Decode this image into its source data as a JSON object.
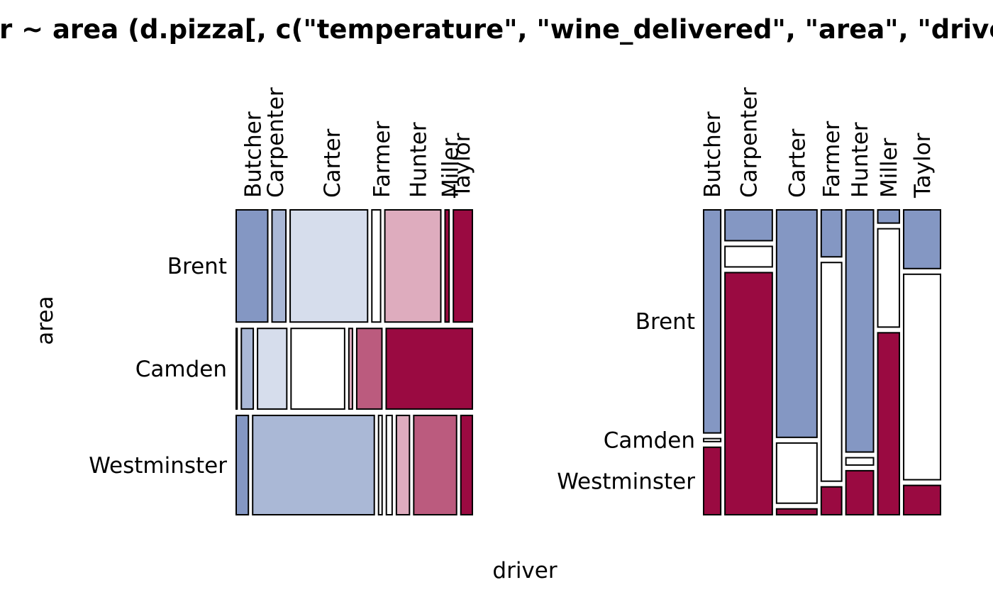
{
  "chart_data": {
    "type": "mosaic",
    "title": "driver ~ area (d.pizza[, c(\"temperature\", \"wine_delivered\", \"area\", \"driver\")])",
    "xlabel": "driver",
    "ylabel": "area",
    "colors": {
      "dark_blue": "#8497c3",
      "mid_blue": "#aab8d6",
      "light_blue": "#d6ddec",
      "white": "#ffffff",
      "light_pink": "#deacbe",
      "mid_pink": "#bb5b7e",
      "dark_red": "#9a0a41"
    },
    "panels": [
      {
        "panel": "left",
        "row_axis": "area",
        "col_axis": "driver",
        "rows": [
          {
            "label": "Brent",
            "share": 0.384,
            "cells": [
              {
                "driver": "Butcher",
                "share": 0.141,
                "color": "dark_blue"
              },
              {
                "driver": "Carpenter",
                "share": 0.062,
                "color": "mid_blue"
              },
              {
                "driver": "Carter",
                "share": 0.346,
                "color": "light_blue"
              },
              {
                "driver": "Farmer",
                "share": 0.039,
                "color": "white"
              },
              {
                "driver": "Hunter",
                "share": 0.25,
                "color": "light_pink"
              },
              {
                "driver": "Miller",
                "share": 0.018,
                "color": "dark_red"
              },
              {
                "driver": "Taylor",
                "share": 0.085,
                "color": "dark_red"
              }
            ]
          },
          {
            "label": "Camden",
            "share": 0.276,
            "cells": [
              {
                "driver": "Butcher",
                "share": 0.004,
                "color": "dark_blue"
              },
              {
                "driver": "Carpenter",
                "share": 0.053,
                "color": "mid_blue"
              },
              {
                "driver": "Carter",
                "share": 0.13,
                "color": "light_blue"
              },
              {
                "driver": "Farmer",
                "share": 0.238,
                "color": "white"
              },
              {
                "driver": "Hunter",
                "share": 0.016,
                "color": "light_pink"
              },
              {
                "driver": "Miller",
                "share": 0.112,
                "color": "mid_pink"
              },
              {
                "driver": "Taylor",
                "share": 0.383,
                "color": "dark_red"
              }
            ]
          },
          {
            "label": "Westminster",
            "share": 0.34,
            "cells": [
              {
                "driver": "Butcher",
                "share": 0.055,
                "color": "dark_blue"
              },
              {
                "driver": "Carpenter",
                "share": 0.548,
                "color": "mid_blue"
              },
              {
                "driver": "Carter",
                "share": 0.016,
                "color": "white"
              },
              {
                "driver": "Farmer",
                "share": 0.026,
                "color": "white"
              },
              {
                "driver": "Hunter",
                "share": 0.059,
                "color": "light_pink"
              },
              {
                "driver": "Miller",
                "share": 0.193,
                "color": "mid_pink"
              },
              {
                "driver": "Taylor",
                "share": 0.052,
                "color": "dark_red"
              }
            ]
          }
        ],
        "col_labels": [
          {
            "label": "Butcher",
            "at": 0.07
          },
          {
            "label": "Carpenter",
            "at": 0.165
          },
          {
            "label": "Carter",
            "at": 0.405
          },
          {
            "label": "Farmer",
            "at": 0.615
          },
          {
            "label": "Hunter",
            "at": 0.77
          },
          {
            "label": "Miller",
            "at": 0.905
          },
          {
            "label": "Taylor",
            "at": 0.955
          }
        ]
      },
      {
        "panel": "right",
        "row_axis": "area",
        "col_axis": "driver",
        "row_labels": [
          {
            "label": "Brent",
            "at": 0.365
          },
          {
            "label": "Camden",
            "at": 0.755
          },
          {
            "label": "Westminster",
            "at": 0.89
          }
        ],
        "columns": [
          {
            "label": "Butcher",
            "share": 0.072,
            "cells": [
              {
                "area": "Brent",
                "share": 0.76,
                "color": "dark_blue"
              },
              {
                "area": "Camden",
                "share": 0.01,
                "color": "white"
              },
              {
                "area": "Westminster",
                "share": 0.23,
                "color": "dark_red"
              }
            ]
          },
          {
            "label": "Carpenter",
            "share": 0.199,
            "cells": [
              {
                "area": "Brent",
                "share": 0.105,
                "color": "dark_blue"
              },
              {
                "area": "Camden",
                "share": 0.07,
                "color": "white"
              },
              {
                "area": "Westminster",
                "share": 0.825,
                "color": "dark_red"
              }
            ]
          },
          {
            "label": "Carter",
            "share": 0.17,
            "cells": [
              {
                "area": "Brent",
                "share": 0.775,
                "color": "dark_blue"
              },
              {
                "area": "Camden",
                "share": 0.205,
                "color": "white"
              },
              {
                "area": "Westminster",
                "share": 0.02,
                "color": "dark_red"
              }
            ]
          },
          {
            "label": "Farmer",
            "share": 0.086,
            "cells": [
              {
                "area": "Brent",
                "share": 0.16,
                "color": "dark_blue"
              },
              {
                "area": "Camden",
                "share": 0.745,
                "color": "white"
              },
              {
                "area": "Westminster",
                "share": 0.095,
                "color": "dark_red"
              }
            ]
          },
          {
            "label": "Hunter",
            "share": 0.116,
            "cells": [
              {
                "area": "Brent",
                "share": 0.825,
                "color": "dark_blue"
              },
              {
                "area": "Camden",
                "share": 0.025,
                "color": "white"
              },
              {
                "area": "Westminster",
                "share": 0.15,
                "color": "dark_red"
              }
            ]
          },
          {
            "label": "Miller",
            "share": 0.091,
            "cells": [
              {
                "area": "Brent",
                "share": 0.045,
                "color": "dark_blue"
              },
              {
                "area": "Camden",
                "share": 0.335,
                "color": "white"
              },
              {
                "area": "Westminster",
                "share": 0.62,
                "color": "dark_red"
              }
            ]
          },
          {
            "label": "Taylor",
            "share": 0.155,
            "cells": [
              {
                "area": "Brent",
                "share": 0.2,
                "color": "dark_blue"
              },
              {
                "area": "Camden",
                "share": 0.7,
                "color": "white"
              },
              {
                "area": "Westminster",
                "share": 0.1,
                "color": "dark_red"
              }
            ]
          }
        ]
      }
    ]
  }
}
